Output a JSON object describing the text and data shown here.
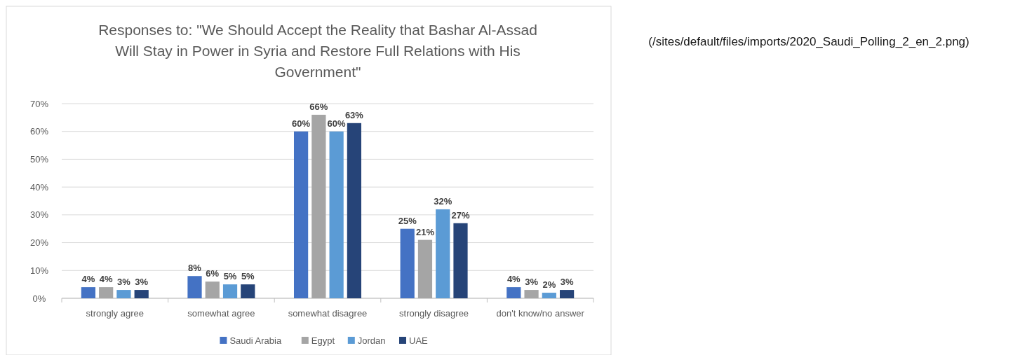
{
  "chart_data": {
    "type": "bar",
    "title": "Responses to: \"We Should Accept the Reality that Bashar Al-Assad Will Stay in Power in Syria and Restore Full Relations with His Government\"",
    "categories": [
      "strongly agree",
      "somewhat agree",
      "somewhat disagree",
      "strongly disagree",
      "don't know/no answer"
    ],
    "series": [
      {
        "name": "Saudi Arabia",
        "color": "#4472c4",
        "values": [
          4,
          8,
          60,
          25,
          4
        ],
        "value_labels": [
          "4%",
          "8%",
          "60%",
          "25%",
          "4%"
        ]
      },
      {
        "name": "Egypt",
        "color": "#a5a5a5",
        "values": [
          4,
          6,
          66,
          21,
          3
        ],
        "value_labels": [
          "4%",
          "6%",
          "66%",
          "21%",
          "3%"
        ]
      },
      {
        "name": "Jordan",
        "color": "#5b9bd5",
        "values": [
          3,
          5,
          60,
          32,
          2
        ],
        "value_labels": [
          "3%",
          "5%",
          "60%",
          "32%",
          "2%"
        ]
      },
      {
        "name": "UAE",
        "color": "#264478",
        "values": [
          3,
          5,
          63,
          27,
          3
        ],
        "value_labels": [
          "3%",
          "5%",
          "63%",
          "27%",
          "3%"
        ]
      }
    ],
    "ylim": [
      0,
      70
    ],
    "yticks": [
      {
        "value": 0,
        "label": "0%"
      },
      {
        "value": 10,
        "label": "10%"
      },
      {
        "value": 20,
        "label": "20%"
      },
      {
        "value": 30,
        "label": "30%"
      },
      {
        "value": 40,
        "label": "40%"
      },
      {
        "value": 50,
        "label": "50%"
      },
      {
        "value": 60,
        "label": "60%"
      },
      {
        "value": 70,
        "label": "70%"
      }
    ],
    "grid": "y",
    "legend": "bottom",
    "annotations": [
      "(/sites/default/files/imports/2020_Saudi_Polling_2_en_2.png)"
    ]
  }
}
